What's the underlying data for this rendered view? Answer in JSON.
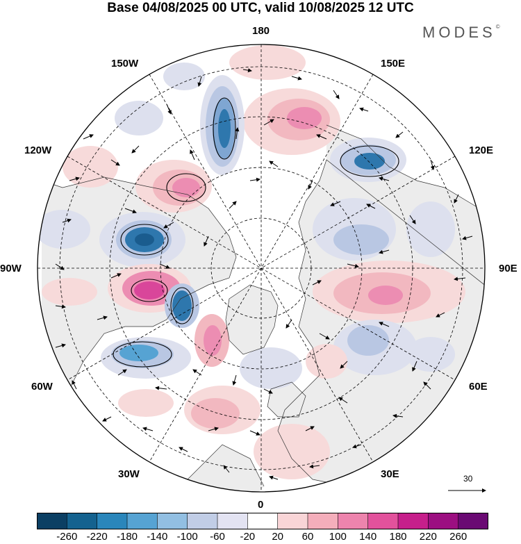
{
  "title": "Base 04/08/2025 00 UTC, valid 10/08/2025 12 UTC",
  "brand": "MODES",
  "brand_mark": "©",
  "longitude_labels": {
    "lon_180": "180",
    "lon_150E": "150E",
    "lon_120E": "120E",
    "lon_90E": "90E",
    "lon_60E": "60E",
    "lon_30E": "30E",
    "lon_0": "0",
    "lon_30W": "30W",
    "lon_60W": "60W",
    "lon_90W": "90W",
    "lon_120W": "120W",
    "lon_150W": "150W"
  },
  "reference_vector": {
    "value": "30"
  },
  "colorbar": {
    "colors": [
      "#0b3f63",
      "#14628f",
      "#2a86bb",
      "#56a3d3",
      "#92bfe2",
      "#c1cde6",
      "#e3e3f2",
      "#ffffff",
      "#f9d5d7",
      "#f4aebb",
      "#ed84ad",
      "#e2529c",
      "#c61f8b",
      "#9c0f81",
      "#6a0a73"
    ],
    "labels": [
      "-260",
      "-220",
      "-180",
      "-140",
      "-100",
      "-60",
      "-20",
      "20",
      "60",
      "100",
      "140",
      "180",
      "220",
      "260"
    ]
  },
  "field_colors": {
    "ocean_neutral": "#ffffff",
    "land_neutral": "#ececec",
    "neg_weak": "#dde0ee",
    "neg_mid": "#b9c7e3",
    "neg_strong": "#7fa6d2",
    "neg_core": "#2e77ad",
    "neg_deep": "#1a5c8e",
    "pos_weak": "#f7dada",
    "pos_mid": "#f2b8c0",
    "pos_strong": "#ec8db2",
    "pos_core": "#d9469a"
  }
}
